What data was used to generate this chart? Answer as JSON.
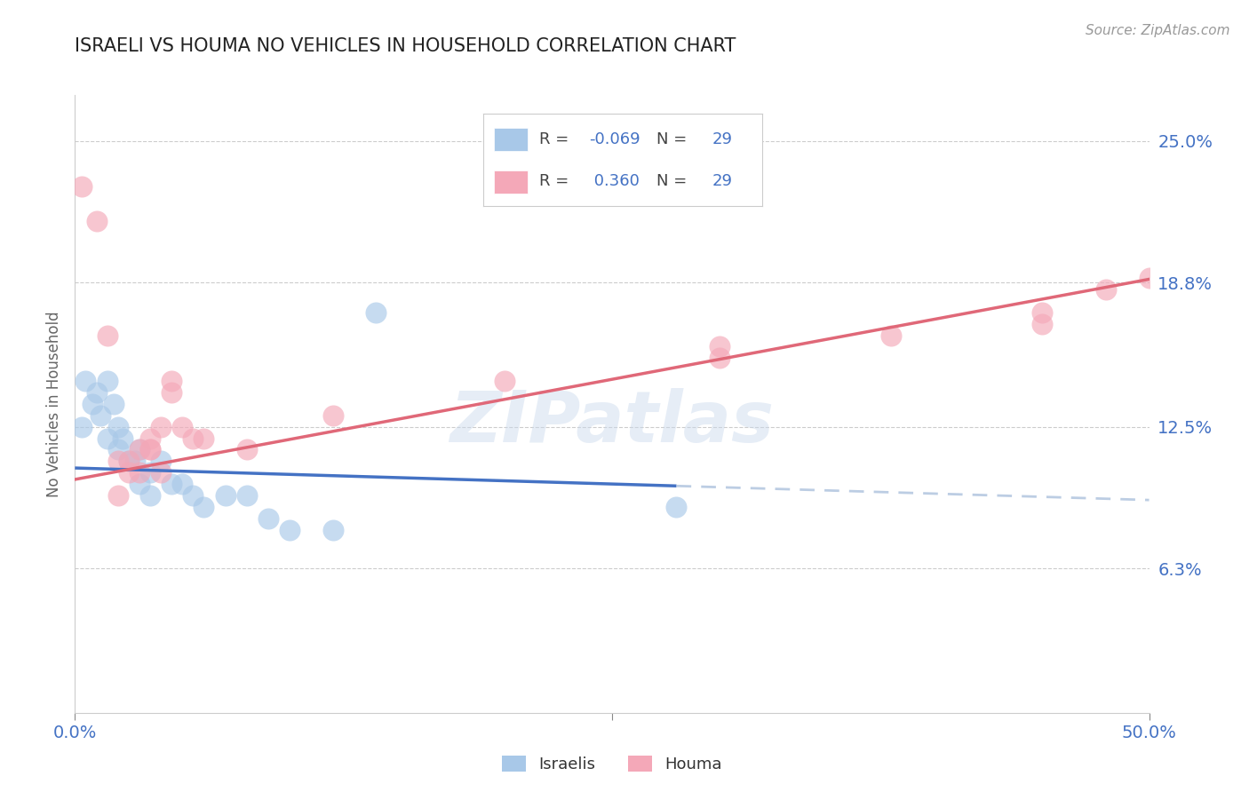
{
  "title": "ISRAELI VS HOUMA NO VEHICLES IN HOUSEHOLD CORRELATION CHART",
  "source": "Source: ZipAtlas.com",
  "ylabel": "No Vehicles in Household",
  "xlim": [
    0.0,
    50.0
  ],
  "ylim": [
    0.0,
    27.0
  ],
  "xtick_vals": [
    0.0,
    25.0,
    50.0
  ],
  "xtick_labels": [
    "0.0%",
    "",
    "50.0%"
  ],
  "ytick_vals": [
    6.3,
    12.5,
    18.8,
    25.0
  ],
  "ytick_labels": [
    "6.3%",
    "12.5%",
    "18.8%",
    "25.0%"
  ],
  "watermark": "ZIPatlas",
  "blue_color": "#a8c8e8",
  "pink_color": "#f4a8b8",
  "blue_line_color": "#4472c4",
  "pink_line_color": "#e06878",
  "blue_line_solid_color": "#4472c4",
  "blue_line_dash_color": "#a0b8d8",
  "israelis_x": [
    0.3,
    0.5,
    0.8,
    1.0,
    1.2,
    1.5,
    1.5,
    1.8,
    2.0,
    2.0,
    2.2,
    2.5,
    2.8,
    3.0,
    3.0,
    3.5,
    3.5,
    4.0,
    4.5,
    5.0,
    5.5,
    6.0,
    7.0,
    8.0,
    9.0,
    10.0,
    12.0,
    14.0,
    28.0
  ],
  "israelis_y": [
    12.5,
    14.5,
    13.5,
    14.0,
    13.0,
    14.5,
    12.0,
    13.5,
    12.5,
    11.5,
    12.0,
    11.0,
    11.0,
    11.5,
    10.0,
    10.5,
    9.5,
    11.0,
    10.0,
    10.0,
    9.5,
    9.0,
    9.5,
    9.5,
    8.5,
    8.0,
    8.0,
    17.5,
    9.0
  ],
  "houma_x": [
    0.3,
    1.0,
    1.5,
    2.0,
    2.5,
    3.0,
    3.5,
    3.5,
    4.0,
    4.0,
    4.5,
    5.0,
    5.5,
    6.0,
    3.0,
    2.0,
    2.5,
    3.5,
    4.5,
    8.0,
    12.0,
    20.0,
    30.0,
    38.0,
    45.0,
    48.0,
    50.0,
    45.0,
    30.0
  ],
  "houma_y": [
    23.0,
    21.5,
    16.5,
    11.0,
    11.0,
    11.5,
    12.0,
    11.5,
    12.5,
    10.5,
    14.0,
    12.5,
    12.0,
    12.0,
    10.5,
    9.5,
    10.5,
    11.5,
    14.5,
    11.5,
    13.0,
    14.5,
    16.0,
    16.5,
    17.5,
    18.5,
    19.0,
    17.0,
    15.5
  ],
  "blue_r": -0.069,
  "blue_n": 29,
  "pink_r": 0.36,
  "pink_n": 29,
  "blue_intercept": 10.7,
  "blue_slope": -0.028,
  "pink_intercept": 10.2,
  "pink_slope": 0.175
}
